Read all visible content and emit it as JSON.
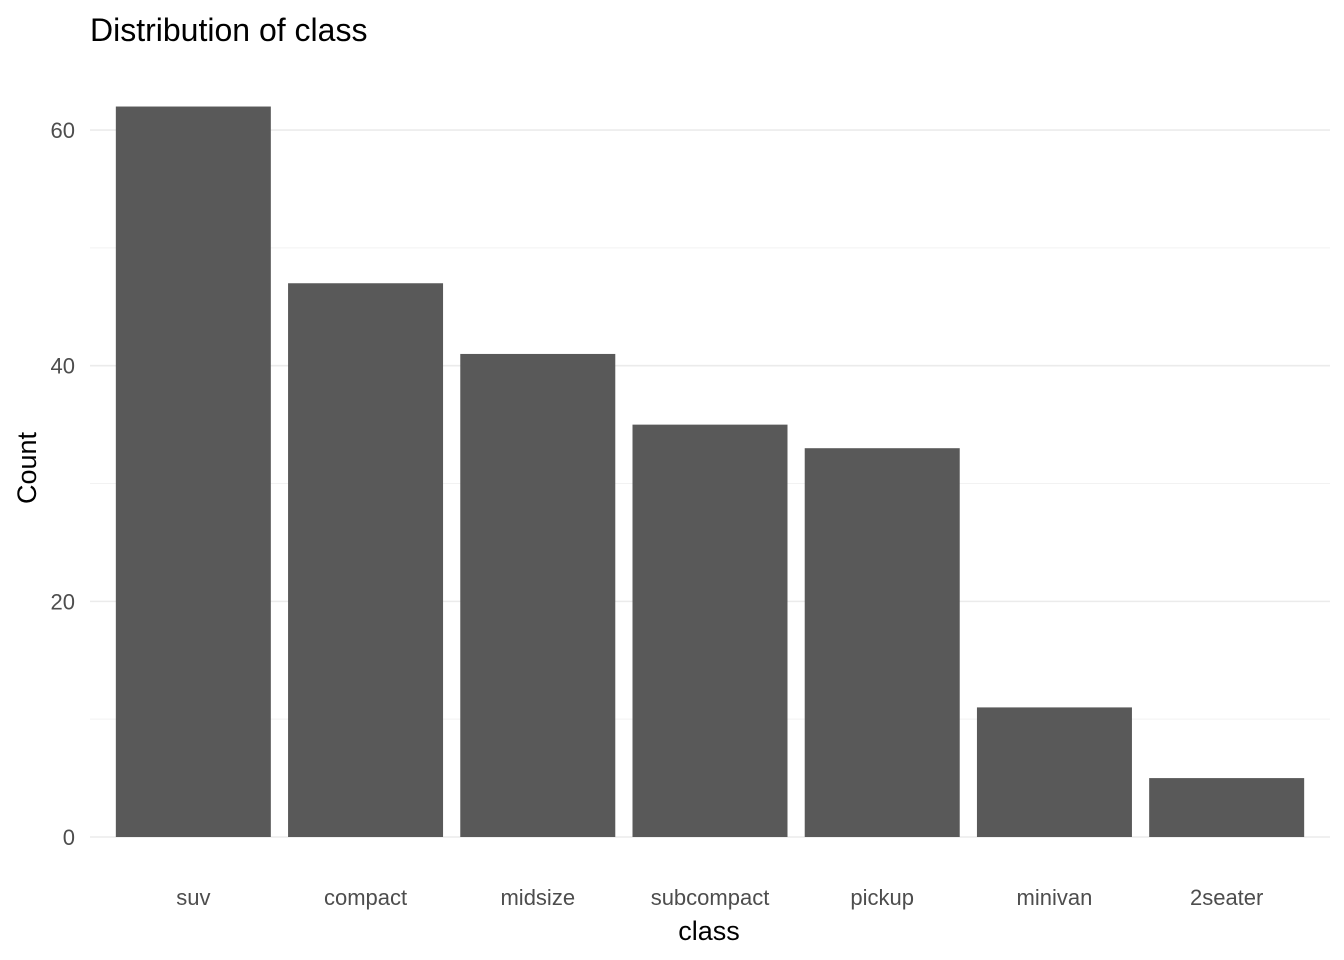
{
  "chart_data": {
    "type": "bar",
    "title": "Distribution of class",
    "xlabel": "class",
    "ylabel": "Count",
    "categories": [
      "suv",
      "compact",
      "midsize",
      "subcompact",
      "pickup",
      "minivan",
      "2seater"
    ],
    "values": [
      62,
      47,
      41,
      35,
      33,
      11,
      5
    ],
    "ylim": [
      0,
      65.1
    ],
    "yticks": [
      0,
      20,
      40,
      60
    ],
    "ytick_labels": [
      "0",
      "20",
      "40",
      "60"
    ],
    "grid": true,
    "legend": "none",
    "bar_color": "#595959",
    "grid_color": "#ebebeb"
  }
}
